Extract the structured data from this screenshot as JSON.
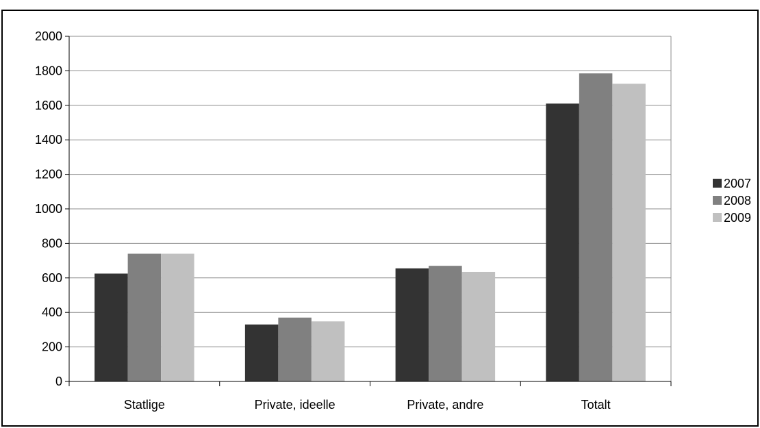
{
  "chart_data": {
    "type": "bar",
    "categories": [
      "Statlige",
      "Private, ideelle",
      "Private, andre",
      "Totalt"
    ],
    "series": [
      {
        "name": "2007",
        "color": "#333333",
        "values": [
          625,
          330,
          655,
          1610
        ]
      },
      {
        "name": "2008",
        "color": "#808080",
        "values": [
          740,
          370,
          670,
          1785
        ]
      },
      {
        "name": "2009",
        "color": "#c0c0c0",
        "values": [
          740,
          348,
          635,
          1725
        ]
      }
    ],
    "title": "",
    "xlabel": "",
    "ylabel": "",
    "ylim": [
      0,
      2000
    ],
    "yticks": [
      "0",
      "200",
      "400",
      "600",
      "800",
      "1000",
      "1200",
      "1400",
      "1600",
      "1800",
      "2000"
    ],
    "grid": true,
    "legend_position": "right"
  }
}
